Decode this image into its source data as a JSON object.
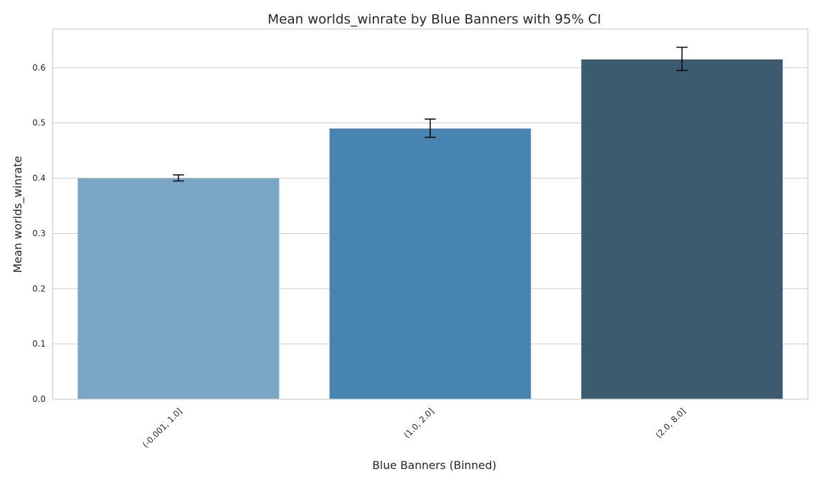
{
  "chart_data": {
    "type": "bar",
    "title": "Mean worlds_winrate by Blue Banners with 95% CI",
    "xlabel": "Blue Banners (Binned)",
    "ylabel": "Mean worlds_winrate",
    "categories": [
      "(-0.001, 1.0]",
      "(1.0, 2.0]",
      "(2.0, 8.0]"
    ],
    "values": [
      0.4,
      0.49,
      0.615
    ],
    "ci_lower": [
      0.395,
      0.474,
      0.595
    ],
    "ci_upper": [
      0.406,
      0.507,
      0.637
    ],
    "ylim": [
      0,
      0.67
    ],
    "yticks": [
      "0.0",
      "0.1",
      "0.2",
      "0.3",
      "0.4",
      "0.5",
      "0.6"
    ],
    "ytick_values": [
      0,
      0.1,
      0.2,
      0.3,
      0.4,
      0.5,
      0.6
    ],
    "colors": [
      "#7ba7c7",
      "#4884b1",
      "#3c5b70"
    ],
    "grid": true,
    "legend": "none"
  }
}
